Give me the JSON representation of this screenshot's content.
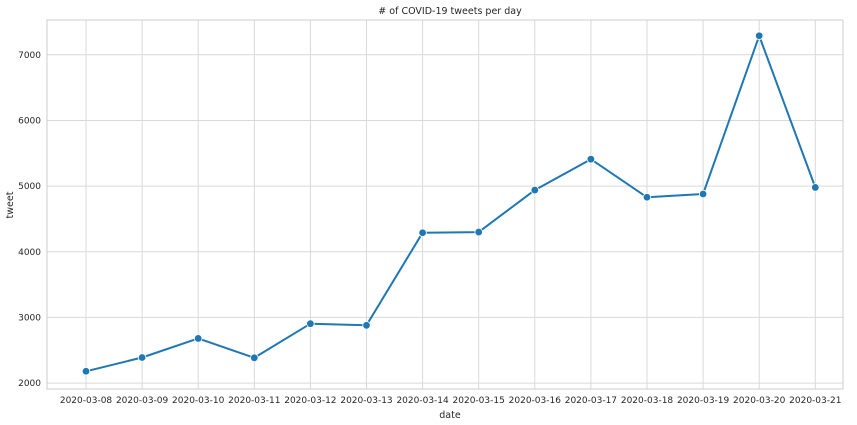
{
  "chart_data": {
    "type": "line",
    "title": "# of COVID-19 tweets per day",
    "xlabel": "date",
    "ylabel": "tweet",
    "categories": [
      "2020-03-08",
      "2020-03-09",
      "2020-03-10",
      "2020-03-11",
      "2020-03-12",
      "2020-03-13",
      "2020-03-14",
      "2020-03-15",
      "2020-03-16",
      "2020-03-17",
      "2020-03-18",
      "2020-03-19",
      "2020-03-20",
      "2020-03-21"
    ],
    "series": [
      {
        "values": [
          2180,
          2390,
          2680,
          2385,
          2905,
          2880,
          4290,
          4300,
          4940,
          5410,
          4830,
          4880,
          7290,
          4980
        ]
      }
    ],
    "ylim": [
      1910,
      7530
    ],
    "yticks": [
      2000,
      3000,
      4000,
      5000,
      6000,
      7000
    ],
    "grid": true,
    "markers": true,
    "colors": {
      "line": "#1f77b4",
      "grid": "#d9d9d9",
      "spine": "#cccccc",
      "text": "#262626"
    }
  }
}
